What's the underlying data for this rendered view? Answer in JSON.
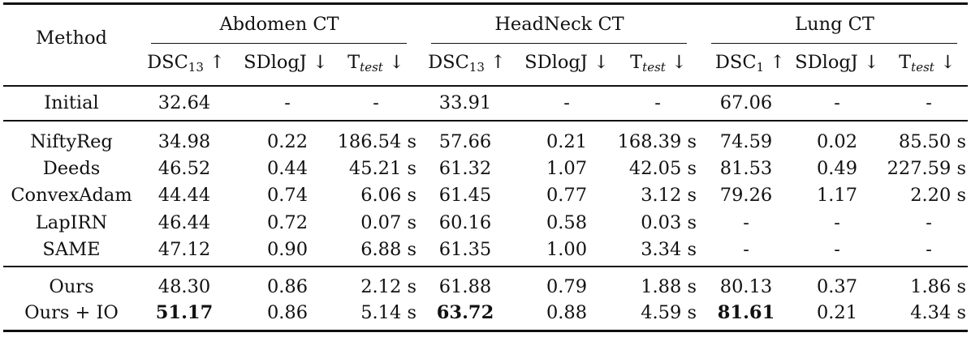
{
  "table": {
    "method_header": "Method",
    "groups": [
      "Abdomen CT",
      "HeadNeck CT",
      "Lung CT"
    ],
    "subheaders": [
      {
        "base": "DSC",
        "sub": "13",
        "arrow": "↑"
      },
      {
        "base": "SDlogJ",
        "sub": "",
        "arrow": "↓"
      },
      {
        "base": "T",
        "sub": "test",
        "arrow": "↓"
      },
      {
        "base": "DSC",
        "sub": "13",
        "arrow": "↑"
      },
      {
        "base": "SDlogJ",
        "sub": "",
        "arrow": "↓"
      },
      {
        "base": "T",
        "sub": "test",
        "arrow": "↓"
      },
      {
        "base": "DSC",
        "sub": "1",
        "arrow": "↑"
      },
      {
        "base": "SDlogJ",
        "sub": "",
        "arrow": "↓"
      },
      {
        "base": "T",
        "sub": "test",
        "arrow": "↓"
      }
    ],
    "rows": [
      {
        "method": "Initial",
        "cells": [
          "32.64",
          "-",
          "-",
          "33.91",
          "-",
          "-",
          "67.06",
          "-",
          "-"
        ]
      },
      {
        "method": "NiftyReg",
        "cells": [
          "34.98",
          "0.22",
          "186.54 s",
          "57.66",
          "0.21",
          "168.39 s",
          "74.59",
          "0.02",
          "85.50 s"
        ]
      },
      {
        "method": "Deeds",
        "cells": [
          "46.52",
          "0.44",
          "45.21 s",
          "61.32",
          "1.07",
          "42.05 s",
          "81.53",
          "0.49",
          "227.59 s"
        ]
      },
      {
        "method": "ConvexAdam",
        "cells": [
          "44.44",
          "0.74",
          "6.06 s",
          "61.45",
          "0.77",
          "3.12 s",
          "79.26",
          "1.17",
          "2.20 s"
        ]
      },
      {
        "method": "LapIRN",
        "cells": [
          "46.44",
          "0.72",
          "0.07 s",
          "60.16",
          "0.58",
          "0.03 s",
          "-",
          "-",
          "-"
        ]
      },
      {
        "method": "SAME",
        "cells": [
          "47.12",
          "0.90",
          "6.88 s",
          "61.35",
          "1.00",
          "3.34 s",
          "-",
          "-",
          "-"
        ]
      },
      {
        "method": "Ours",
        "cells": [
          "48.30",
          "0.86",
          "2.12 s",
          "61.88",
          "0.79",
          "1.88 s",
          "80.13",
          "0.37",
          "1.86 s"
        ]
      },
      {
        "method": "Ours + IO",
        "cells": [
          "51.17",
          "0.86",
          "5.14 s",
          "63.72",
          "0.88",
          "4.59 s",
          "81.61",
          "0.21",
          "4.34 s"
        ],
        "bold": [
          0,
          3,
          6
        ]
      }
    ]
  }
}
